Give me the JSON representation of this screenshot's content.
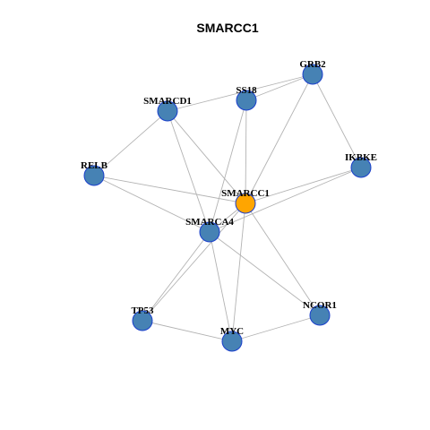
{
  "title": "SMARCC1",
  "colors": {
    "center_node": "#FFA500",
    "neighbor_node": "#4682B4",
    "node_border": "#1a3fcc",
    "edge": "#b3b3b3"
  },
  "nodes": [
    {
      "id": "SMARCC1",
      "label": "SMARCC1",
      "role": "center"
    },
    {
      "id": "GRB2",
      "label": "GRB2",
      "role": "neighbor"
    },
    {
      "id": "SS18",
      "label": "SS18",
      "role": "neighbor"
    },
    {
      "id": "SMARCD1",
      "label": "SMARCD1",
      "role": "neighbor"
    },
    {
      "id": "RELB",
      "label": "RELB",
      "role": "neighbor"
    },
    {
      "id": "IKBKE",
      "label": "IKBKE",
      "role": "neighbor"
    },
    {
      "id": "SMARCA4",
      "label": "SMARCA4",
      "role": "neighbor"
    },
    {
      "id": "TP53",
      "label": "TP53",
      "role": "neighbor"
    },
    {
      "id": "MYC",
      "label": "MYC",
      "role": "neighbor"
    },
    {
      "id": "NCOR1",
      "label": "NCOR1",
      "role": "neighbor"
    }
  ],
  "edges": [
    [
      "SMARCC1",
      "GRB2"
    ],
    [
      "SMARCC1",
      "SS18"
    ],
    [
      "SMARCC1",
      "SMARCD1"
    ],
    [
      "SMARCC1",
      "RELB"
    ],
    [
      "SMARCC1",
      "IKBKE"
    ],
    [
      "SMARCC1",
      "SMARCA4"
    ],
    [
      "SMARCC1",
      "MYC"
    ],
    [
      "SMARCC1",
      "NCOR1"
    ],
    [
      "SMARCD1",
      "GRB2"
    ],
    [
      "SMARCD1",
      "RELB"
    ],
    [
      "SMARCD1",
      "SMARCA4"
    ],
    [
      "SS18",
      "GRB2"
    ],
    [
      "SS18",
      "SMARCA4"
    ],
    [
      "GRB2",
      "IKBKE"
    ],
    [
      "RELB",
      "SMARCA4"
    ],
    [
      "SMARCA4",
      "IKBKE"
    ],
    [
      "SMARCA4",
      "TP53"
    ],
    [
      "SMARCA4",
      "MYC"
    ],
    [
      "SMARCA4",
      "NCOR1"
    ],
    [
      "TP53",
      "SMARCC1"
    ],
    [
      "TP53",
      "MYC"
    ],
    [
      "MYC",
      "NCOR1"
    ]
  ]
}
